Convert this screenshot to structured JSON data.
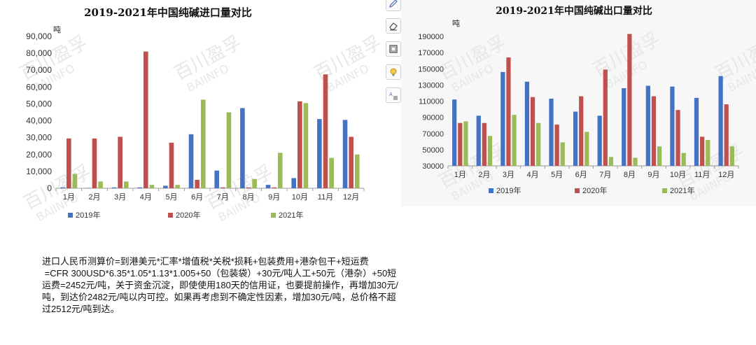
{
  "colors": {
    "s2019": "#4472c4",
    "s2020": "#c0504d",
    "s2021": "#9bbb59",
    "axis": "#999999"
  },
  "watermark": {
    "cn": "百川盈孚",
    "en": "BAIINFO"
  },
  "toolbar": {
    "icons": [
      "pen-icon",
      "eraser-icon",
      "frame-icon",
      "lightbulb-icon",
      "translate-icon"
    ]
  },
  "chart_data": [
    {
      "type": "bar",
      "title": "2019-2021年中国纯碱进口量对比",
      "unit": "吨",
      "categories": [
        "1月",
        "2月",
        "3月",
        "4月",
        "5月",
        "6月",
        "7月",
        "8月",
        "9月",
        "10月",
        "11月",
        "12月"
      ],
      "ylim": [
        0,
        90000
      ],
      "yticks": [
        "0",
        "10,000",
        "20,000",
        "30,000",
        "40,000",
        "50,000",
        "60,000",
        "70,000",
        "80,000",
        "90,000"
      ],
      "grid": false,
      "legend_position": "bottom",
      "series": [
        {
          "name": "2019年",
          "values": [
            500,
            200,
            500,
            500,
            1500,
            32000,
            10500,
            47500,
            2000,
            6000,
            41000,
            40500
          ]
        },
        {
          "name": "2020年",
          "values": [
            29500,
            29500,
            30500,
            81000,
            27000,
            5000,
            500,
            500,
            500,
            51500,
            67500,
            30500
          ]
        },
        {
          "name": "2021年",
          "values": [
            8500,
            4000,
            4000,
            2000,
            2000,
            52500,
            45000,
            5500,
            21000,
            50500,
            18000,
            20000
          ]
        }
      ]
    },
    {
      "type": "bar",
      "title": "2019-2021年中国纯碱出口量对比",
      "unit": "吨",
      "categories": [
        "1月",
        "2月",
        "3月",
        "4月",
        "5月",
        "6月",
        "7月",
        "8月",
        "9月",
        "10月",
        "11月",
        "12月"
      ],
      "ylim": [
        30000,
        190000
      ],
      "yticks": [
        "30000",
        "50000",
        "70000",
        "90000",
        "110000",
        "130000",
        "150000",
        "170000",
        "190000"
      ],
      "grid": false,
      "legend_position": "bottom",
      "series": [
        {
          "name": "2019年",
          "values": [
            112000,
            92000,
            146000,
            134000,
            113000,
            97000,
            92000,
            126000,
            129000,
            128000,
            114000,
            141000
          ]
        },
        {
          "name": "2020年",
          "values": [
            83000,
            83000,
            164000,
            115000,
            81000,
            116000,
            149000,
            193000,
            116000,
            99000,
            66000,
            106000
          ]
        },
        {
          "name": "2021年",
          "values": [
            85000,
            67000,
            93000,
            83000,
            59000,
            72000,
            41000,
            40000,
            54000,
            46000,
            62000,
            54000
          ]
        }
      ]
    }
  ],
  "note": {
    "lines": [
      "进口人民币测算价=到港美元*汇率*增值税*关税*损耗+包装费用+港杂包干+短运费",
      " =CFR 300USD*6.35*1.05*1.13*1.005+50（包装袋）+30元/吨人工+50元（港杂）+50短",
      "运费=2452元/吨，关于资金沉淀，即使使用180天的信用证，也要提前操作，再增加30元/",
      "吨，到达价2482元/吨以内可控。如果再考虑到不确定性因素，增加30元/吨，总价格不超",
      "过2512元/吨到达。"
    ]
  }
}
